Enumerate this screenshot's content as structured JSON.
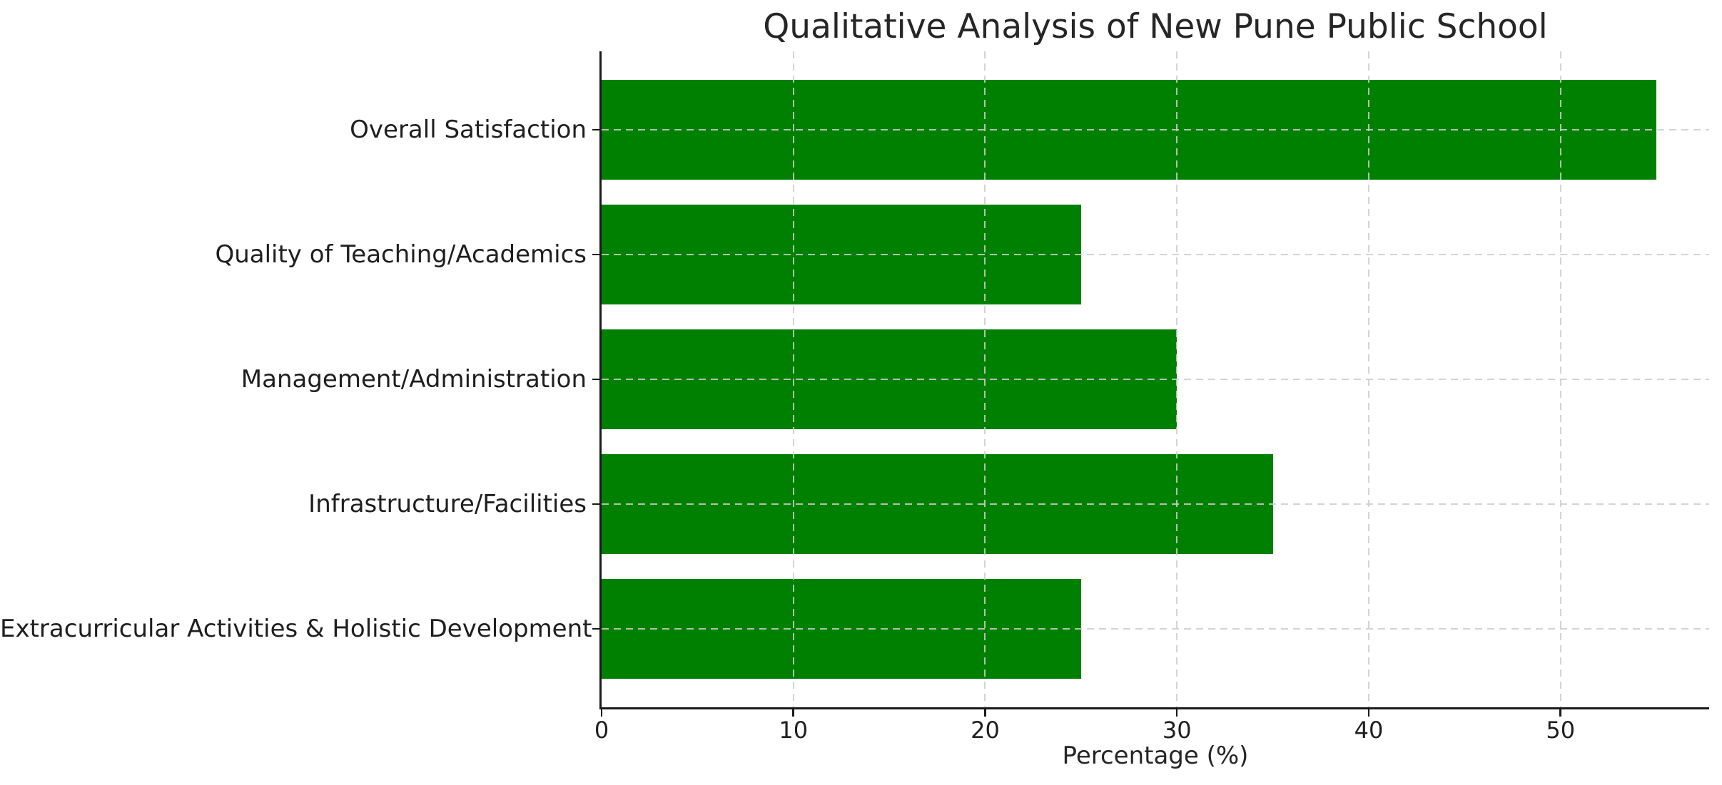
{
  "chart_data": {
    "type": "bar",
    "orientation": "horizontal",
    "title": "Qualitative Analysis of New Pune Public School",
    "xlabel": "Percentage (%)",
    "ylabel": "",
    "categories": [
      "Overall Satisfaction",
      "Quality of Teaching/Academics",
      "Management/Administration",
      "Infrastructure/Facilities",
      "Extracurricular Activities & Holistic Development"
    ],
    "values": [
      55,
      25,
      30,
      35,
      25
    ],
    "xticks": [
      0,
      10,
      20,
      30,
      40,
      50
    ],
    "xlim": [
      0,
      57.75
    ],
    "grid": true,
    "grid_style": "dashed",
    "legend": "none",
    "colors": {
      "bar": "#008000",
      "grid": "#cccccc",
      "axis": "#1a1a1a",
      "text": "#262626"
    }
  }
}
